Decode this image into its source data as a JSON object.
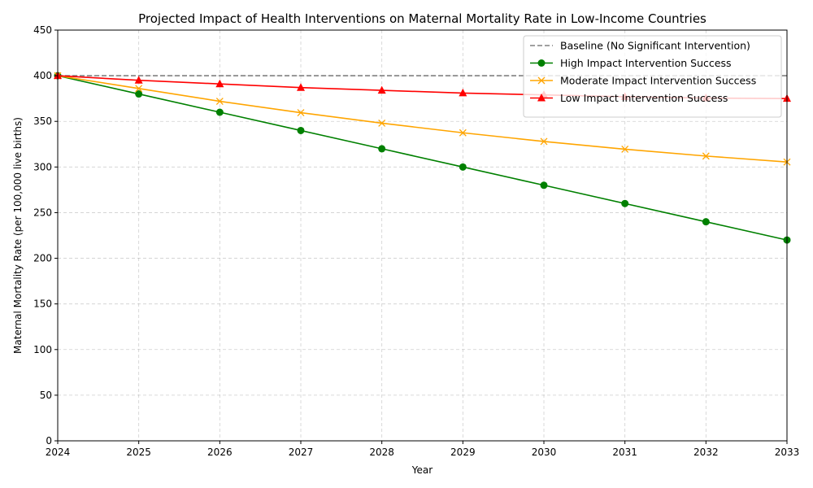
{
  "chart_data": {
    "type": "line",
    "title": "Projected Impact of Health Interventions on Maternal Mortality Rate in Low-Income Countries",
    "xlabel": "Year",
    "ylabel": "Maternal Mortality Rate (per 100,000 live births)",
    "x": [
      2024,
      2025,
      2026,
      2027,
      2028,
      2029,
      2030,
      2031,
      2032,
      2033
    ],
    "xlim": [
      2024,
      2033
    ],
    "ylim": [
      0,
      450
    ],
    "yticks": [
      0,
      50,
      100,
      150,
      200,
      250,
      300,
      350,
      400,
      450
    ],
    "grid": true,
    "legend_position": "top-right",
    "series": [
      {
        "name": "Baseline (No Significant Intervention)",
        "color": "#808080",
        "style": "dashed",
        "marker": "none",
        "values": [
          400,
          400,
          400,
          400,
          400,
          400,
          400,
          400,
          400,
          400
        ]
      },
      {
        "name": "High Impact Intervention Success",
        "color": "#008000",
        "style": "solid",
        "marker": "circle",
        "values": [
          400,
          380,
          360,
          340,
          320,
          300,
          280,
          260,
          240,
          220
        ]
      },
      {
        "name": "Moderate Impact Intervention Success",
        "color": "#ffa500",
        "style": "solid",
        "marker": "x",
        "values": [
          400,
          386,
          372,
          359.5,
          348,
          337.5,
          328,
          319.5,
          312,
          305.5
        ]
      },
      {
        "name": "Low Impact Intervention Success",
        "color": "#ff0000",
        "style": "solid",
        "marker": "triangle",
        "values": [
          400,
          395,
          391,
          387,
          384,
          381,
          379,
          377,
          375.5,
          375
        ]
      }
    ]
  }
}
